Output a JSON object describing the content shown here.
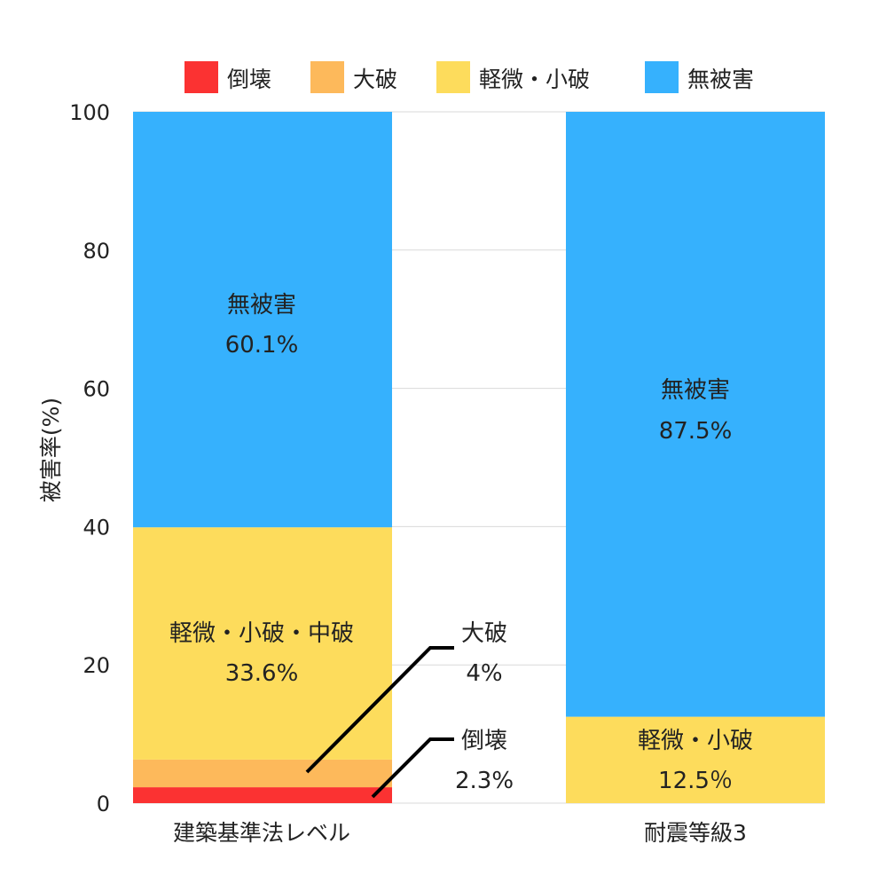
{
  "chart_data": {
    "type": "bar",
    "stacked": true,
    "categories": [
      "建築基準法レベル",
      "耐震等級3"
    ],
    "ylabel": "被害率(%)",
    "ylim": [
      0,
      100
    ],
    "yticks": [
      "0",
      "20",
      "40",
      "60",
      "80",
      "100"
    ],
    "grid": true,
    "legend": {
      "position": "top",
      "items": [
        {
          "label": "倒壊",
          "color": "#fb3232"
        },
        {
          "label": "大破",
          "color": "#fdb95b"
        },
        {
          "label": "軽微・小破",
          "color": "#fddc5c"
        },
        {
          "label": "無被害",
          "color": "#36b1fd"
        }
      ]
    },
    "series": [
      {
        "name": "倒壊",
        "color": "#fb3232",
        "values": [
          2.3,
          0
        ]
      },
      {
        "name": "大破",
        "color": "#fdb95b",
        "values": [
          4,
          0
        ]
      },
      {
        "name": "軽微・小破",
        "color": "#fddc5c",
        "values": [
          33.6,
          12.5
        ]
      },
      {
        "name": "無被害",
        "color": "#36b1fd",
        "values": [
          60.1,
          87.5
        ]
      }
    ],
    "annotations": {
      "bar1_nohigai": {
        "name": "無被害",
        "value": "60.1%"
      },
      "bar1_keibi": {
        "name": "軽微・小破・中破",
        "value": "33.6%"
      },
      "bar1_taiha": {
        "name": "大破",
        "value": "4%"
      },
      "bar1_toukai": {
        "name": "倒壊",
        "value": "2.3%"
      },
      "bar2_nohigai": {
        "name": "無被害",
        "value": "87.5%"
      },
      "bar2_keibi": {
        "name": "軽微・小破",
        "value": "12.5％"
      }
    }
  }
}
